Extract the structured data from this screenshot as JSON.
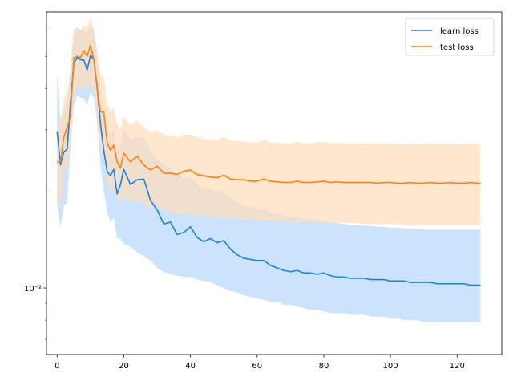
{
  "chart_data": {
    "type": "line",
    "yscale": "log",
    "xlim": [
      -3.2,
      133.4
    ],
    "ylim": [
      0.0063,
      0.068
    ],
    "x_ticks": [
      0,
      20,
      40,
      60,
      80,
      100,
      120
    ],
    "x_tick_labels": [
      "0",
      "20",
      "40",
      "60",
      "80",
      "100",
      "120"
    ],
    "y_major_ticks": [
      0.01
    ],
    "y_major_tick_labels": [
      "10⁻²"
    ],
    "y_minor_ticks": [
      0.007,
      0.008,
      0.009,
      0.02,
      0.03,
      0.04,
      0.05,
      0.06
    ],
    "legend_position": "top-right",
    "grid": false,
    "x": [
      0,
      1,
      2,
      3,
      4,
      5,
      6,
      7,
      8,
      9,
      10,
      11,
      12,
      13,
      14,
      15,
      16,
      17,
      18,
      19,
      20,
      22,
      24,
      26,
      28,
      30,
      32,
      34,
      36,
      38,
      40,
      42,
      44,
      46,
      48,
      50,
      52,
      54,
      56,
      58,
      60,
      62,
      64,
      66,
      68,
      70,
      72,
      74,
      76,
      78,
      80,
      82,
      84,
      86,
      88,
      90,
      92,
      94,
      96,
      98,
      100,
      102,
      104,
      106,
      108,
      110,
      112,
      114,
      116,
      118,
      120,
      122,
      124,
      126,
      127
    ],
    "series": [
      {
        "name": "learn loss",
        "color": "#1f77b4",
        "line_color": "#1a80e0",
        "band_color": "#cce4fb",
        "values": [
          0.0297,
          0.0235,
          0.0257,
          0.0262,
          0.036,
          0.0475,
          0.0496,
          0.0488,
          0.0487,
          0.0455,
          0.0503,
          0.049,
          0.0405,
          0.0313,
          0.026,
          0.0225,
          0.0218,
          0.0228,
          0.0192,
          0.0205,
          0.0228,
          0.0205,
          0.0212,
          0.0213,
          0.0184,
          0.0172,
          0.0156,
          0.0158,
          0.0145,
          0.0147,
          0.0153,
          0.0142,
          0.0138,
          0.0141,
          0.0137,
          0.0139,
          0.0131,
          0.0126,
          0.0123,
          0.0122,
          0.0121,
          0.0121,
          0.0117,
          0.0115,
          0.0113,
          0.0112,
          0.0113,
          0.0111,
          0.0111,
          0.011,
          0.0111,
          0.0109,
          0.0108,
          0.0108,
          0.0107,
          0.0107,
          0.0107,
          0.0106,
          0.0106,
          0.0106,
          0.0105,
          0.0105,
          0.0105,
          0.0104,
          0.0104,
          0.0104,
          0.0104,
          0.0103,
          0.0103,
          0.0103,
          0.0103,
          0.0103,
          0.0102,
          0.0102,
          0.0102
        ],
        "lower": [
          0.0177,
          0.0152,
          0.0177,
          0.018,
          0.027,
          0.0355,
          0.038,
          0.0375,
          0.0373,
          0.0355,
          0.0388,
          0.0375,
          0.0315,
          0.0235,
          0.0195,
          0.017,
          0.0158,
          0.0163,
          0.0141,
          0.0141,
          0.0136,
          0.0133,
          0.0128,
          0.0125,
          0.0121,
          0.0115,
          0.0112,
          0.011,
          0.0109,
          0.0108,
          0.0108,
          0.0106,
          0.0105,
          0.0104,
          0.0102,
          0.01,
          0.0098,
          0.0097,
          0.0095,
          0.0094,
          0.0093,
          0.0092,
          0.0091,
          0.0091,
          0.0089,
          0.0089,
          0.0088,
          0.0087,
          0.0086,
          0.0086,
          0.0085,
          0.0084,
          0.0084,
          0.0084,
          0.0083,
          0.0083,
          0.0083,
          0.0082,
          0.0082,
          0.0082,
          0.0081,
          0.0081,
          0.008,
          0.008,
          0.008,
          0.0079,
          0.0079,
          0.0079,
          0.0079,
          0.0079,
          0.0079,
          0.0079,
          0.0079,
          0.0079,
          0.0079
        ],
        "upper": [
          0.044,
          0.032,
          0.034,
          0.036,
          0.046,
          0.06,
          0.061,
          0.06,
          0.06,
          0.058,
          0.062,
          0.06,
          0.052,
          0.04,
          0.034,
          0.03,
          0.029,
          0.0295,
          0.026,
          0.027,
          0.03,
          0.028,
          0.0285,
          0.0285,
          0.026,
          0.0245,
          0.0235,
          0.023,
          0.022,
          0.0215,
          0.0215,
          0.0205,
          0.02,
          0.0198,
          0.0196,
          0.0195,
          0.0188,
          0.0182,
          0.0178,
          0.0176,
          0.0174,
          0.0173,
          0.017,
          0.0168,
          0.0166,
          0.0164,
          0.0163,
          0.0162,
          0.0161,
          0.016,
          0.0159,
          0.0158,
          0.0157,
          0.0156,
          0.0155,
          0.0155,
          0.0154,
          0.0154,
          0.0153,
          0.0153,
          0.0152,
          0.0152,
          0.0151,
          0.0151,
          0.0151,
          0.015,
          0.015,
          0.015,
          0.015,
          0.015,
          0.015,
          0.015,
          0.015,
          0.015,
          0.015
        ]
      },
      {
        "name": "test loss",
        "color": "#ff7f0e",
        "line_color": "#ff7f0e",
        "band_color": "#ffdcbc",
        "values": [
          0.024,
          0.024,
          0.0285,
          0.0305,
          0.033,
          0.0495,
          0.05,
          0.0495,
          0.052,
          0.05,
          0.054,
          0.049,
          0.04,
          0.034,
          0.034,
          0.0275,
          0.026,
          0.027,
          0.024,
          0.023,
          0.0255,
          0.024,
          0.025,
          0.0235,
          0.0227,
          0.0233,
          0.0222,
          0.0222,
          0.022,
          0.0225,
          0.0227,
          0.022,
          0.0218,
          0.0216,
          0.0215,
          0.0219,
          0.0213,
          0.0212,
          0.0212,
          0.021,
          0.021,
          0.0213,
          0.021,
          0.0209,
          0.0208,
          0.0208,
          0.021,
          0.0208,
          0.0208,
          0.0209,
          0.021,
          0.0208,
          0.0209,
          0.0208,
          0.0208,
          0.0208,
          0.0208,
          0.0208,
          0.0207,
          0.0208,
          0.0208,
          0.0207,
          0.0207,
          0.0208,
          0.0207,
          0.0207,
          0.0208,
          0.0207,
          0.0207,
          0.0208,
          0.0207,
          0.0207,
          0.0208,
          0.0207,
          0.0207
        ],
        "lower": [
          0.018,
          0.0175,
          0.022,
          0.0235,
          0.0265,
          0.039,
          0.04,
          0.0395,
          0.041,
          0.0395,
          0.042,
          0.0385,
          0.0315,
          0.0255,
          0.025,
          0.021,
          0.0195,
          0.02,
          0.0185,
          0.018,
          0.019,
          0.0182,
          0.0185,
          0.0178,
          0.0175,
          0.0176,
          0.0172,
          0.017,
          0.0168,
          0.0168,
          0.0167,
          0.0166,
          0.0165,
          0.0164,
          0.0163,
          0.0163,
          0.0162,
          0.0162,
          0.0161,
          0.0161,
          0.016,
          0.016,
          0.016,
          0.0159,
          0.0159,
          0.0159,
          0.0158,
          0.0158,
          0.0158,
          0.0158,
          0.0158,
          0.0157,
          0.0157,
          0.0157,
          0.0157,
          0.0157,
          0.0156,
          0.0156,
          0.0156,
          0.0156,
          0.0156,
          0.0156,
          0.0155,
          0.0155,
          0.0155,
          0.0155,
          0.0155,
          0.0155,
          0.0155,
          0.0155,
          0.0155,
          0.0155,
          0.0155,
          0.0155,
          0.0155
        ],
        "upper": [
          0.031,
          0.0325,
          0.037,
          0.039,
          0.042,
          0.06,
          0.061,
          0.06,
          0.062,
          0.061,
          0.066,
          0.06,
          0.05,
          0.044,
          0.043,
          0.036,
          0.034,
          0.035,
          0.0315,
          0.03,
          0.033,
          0.031,
          0.032,
          0.0305,
          0.0295,
          0.03,
          0.029,
          0.0288,
          0.0285,
          0.029,
          0.029,
          0.0285,
          0.0282,
          0.028,
          0.028,
          0.0285,
          0.0278,
          0.0277,
          0.0277,
          0.0275,
          0.0275,
          0.028,
          0.0275,
          0.0274,
          0.0273,
          0.0273,
          0.0276,
          0.0273,
          0.0273,
          0.0275,
          0.0276,
          0.0273,
          0.0274,
          0.0273,
          0.0273,
          0.0273,
          0.0273,
          0.0273,
          0.0272,
          0.0273,
          0.0273,
          0.0272,
          0.0272,
          0.0273,
          0.0272,
          0.0272,
          0.0273,
          0.0272,
          0.0272,
          0.0273,
          0.0272,
          0.0272,
          0.0273,
          0.0272,
          0.0272
        ]
      }
    ]
  }
}
